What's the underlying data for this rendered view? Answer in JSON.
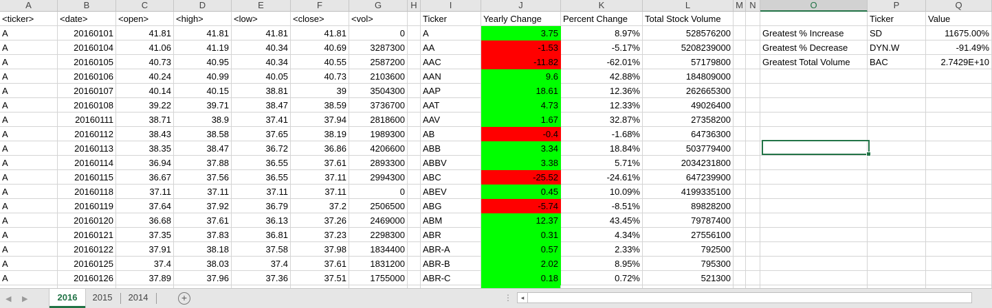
{
  "columns": [
    {
      "id": "A",
      "label": "A"
    },
    {
      "id": "B",
      "label": "B"
    },
    {
      "id": "C",
      "label": "C"
    },
    {
      "id": "D",
      "label": "D"
    },
    {
      "id": "E",
      "label": "E"
    },
    {
      "id": "F",
      "label": "F"
    },
    {
      "id": "G",
      "label": "G"
    },
    {
      "id": "H",
      "label": "H"
    },
    {
      "id": "I",
      "label": "I"
    },
    {
      "id": "J",
      "label": "J"
    },
    {
      "id": "K",
      "label": "K"
    },
    {
      "id": "L",
      "label": "L"
    },
    {
      "id": "M",
      "label": "M"
    },
    {
      "id": "N",
      "label": "N"
    },
    {
      "id": "O",
      "label": "O"
    },
    {
      "id": "P",
      "label": "P"
    },
    {
      "id": "Q",
      "label": "Q"
    }
  ],
  "selected_column": "O",
  "header_row": {
    "raw": [
      "<ticker>",
      "<date>",
      "<open>",
      "<high>",
      "<low>",
      "<close>",
      "<vol>"
    ],
    "summary": [
      "Ticker",
      "Yearly Change",
      "Percent Change",
      "Total Stock Volume"
    ],
    "bonus": [
      "Ticker",
      "Value"
    ]
  },
  "raw_rows": [
    [
      "A",
      "20160101",
      "41.81",
      "41.81",
      "41.81",
      "41.81",
      "0"
    ],
    [
      "A",
      "20160104",
      "41.06",
      "41.19",
      "40.34",
      "40.69",
      "3287300"
    ],
    [
      "A",
      "20160105",
      "40.73",
      "40.95",
      "40.34",
      "40.55",
      "2587200"
    ],
    [
      "A",
      "20160106",
      "40.24",
      "40.99",
      "40.05",
      "40.73",
      "2103600"
    ],
    [
      "A",
      "20160107",
      "40.14",
      "40.15",
      "38.81",
      "39",
      "3504300"
    ],
    [
      "A",
      "20160108",
      "39.22",
      "39.71",
      "38.47",
      "38.59",
      "3736700"
    ],
    [
      "A",
      "20160111",
      "38.71",
      "38.9",
      "37.41",
      "37.94",
      "2818600"
    ],
    [
      "A",
      "20160112",
      "38.43",
      "38.58",
      "37.65",
      "38.19",
      "1989300"
    ],
    [
      "A",
      "20160113",
      "38.35",
      "38.47",
      "36.72",
      "36.86",
      "4206600"
    ],
    [
      "A",
      "20160114",
      "36.94",
      "37.88",
      "36.55",
      "37.61",
      "2893300"
    ],
    [
      "A",
      "20160115",
      "36.67",
      "37.56",
      "36.55",
      "37.11",
      "2994300"
    ],
    [
      "A",
      "20160118",
      "37.11",
      "37.11",
      "37.11",
      "37.11",
      "0"
    ],
    [
      "A",
      "20160119",
      "37.64",
      "37.92",
      "36.79",
      "37.2",
      "2506500"
    ],
    [
      "A",
      "20160120",
      "36.68",
      "37.61",
      "36.13",
      "37.26",
      "2469000"
    ],
    [
      "A",
      "20160121",
      "37.35",
      "37.83",
      "36.81",
      "37.23",
      "2298300"
    ],
    [
      "A",
      "20160122",
      "37.91",
      "38.18",
      "37.58",
      "37.98",
      "1834400"
    ],
    [
      "A",
      "20160125",
      "37.4",
      "38.03",
      "37.4",
      "37.61",
      "1831200"
    ],
    [
      "A",
      "20160126",
      "37.89",
      "37.96",
      "37.36",
      "37.51",
      "1755000"
    ]
  ],
  "summary_rows": [
    {
      "ticker": "A",
      "change": "3.75",
      "pct": "8.97%",
      "volume": "528576200",
      "positive": true
    },
    {
      "ticker": "AA",
      "change": "-1.53",
      "pct": "-5.17%",
      "volume": "5208239000",
      "positive": false
    },
    {
      "ticker": "AAC",
      "change": "-11.82",
      "pct": "-62.01%",
      "volume": "57179800",
      "positive": false
    },
    {
      "ticker": "AAN",
      "change": "9.6",
      "pct": "42.88%",
      "volume": "184809000",
      "positive": true
    },
    {
      "ticker": "AAP",
      "change": "18.61",
      "pct": "12.36%",
      "volume": "262665300",
      "positive": true
    },
    {
      "ticker": "AAT",
      "change": "4.73",
      "pct": "12.33%",
      "volume": "49026400",
      "positive": true
    },
    {
      "ticker": "AAV",
      "change": "1.67",
      "pct": "32.87%",
      "volume": "27358200",
      "positive": true
    },
    {
      "ticker": "AB",
      "change": "-0.4",
      "pct": "-1.68%",
      "volume": "64736300",
      "positive": false
    },
    {
      "ticker": "ABB",
      "change": "3.34",
      "pct": "18.84%",
      "volume": "503779400",
      "positive": true
    },
    {
      "ticker": "ABBV",
      "change": "3.38",
      "pct": "5.71%",
      "volume": "2034231800",
      "positive": true
    },
    {
      "ticker": "ABC",
      "change": "-25.52",
      "pct": "-24.61%",
      "volume": "647239900",
      "positive": false
    },
    {
      "ticker": "ABEV",
      "change": "0.45",
      "pct": "10.09%",
      "volume": "4199335100",
      "positive": true
    },
    {
      "ticker": "ABG",
      "change": "-5.74",
      "pct": "-8.51%",
      "volume": "89828200",
      "positive": false
    },
    {
      "ticker": "ABM",
      "change": "12.37",
      "pct": "43.45%",
      "volume": "79787400",
      "positive": true
    },
    {
      "ticker": "ABR",
      "change": "0.31",
      "pct": "4.34%",
      "volume": "27556100",
      "positive": true
    },
    {
      "ticker": "ABR-A",
      "change": "0.57",
      "pct": "2.33%",
      "volume": "792500",
      "positive": true
    },
    {
      "ticker": "ABR-B",
      "change": "2.02",
      "pct": "8.95%",
      "volume": "795300",
      "positive": true
    },
    {
      "ticker": "ABR-C",
      "change": "0.18",
      "pct": "0.72%",
      "volume": "521300",
      "positive": true
    }
  ],
  "bonus_rows": [
    {
      "label": "Greatest % Increase",
      "ticker": "SD",
      "value": "11675.00%"
    },
    {
      "label": "Greatest % Decrease",
      "ticker": "DYN.W",
      "value": "-91.49%"
    },
    {
      "label": "Greatest Total Volume",
      "ticker": "BAC",
      "value": "2.7429E+10"
    }
  ],
  "sheet_tabs": [
    {
      "label": "2016",
      "active": true
    },
    {
      "label": "2015",
      "active": false
    },
    {
      "label": "2014",
      "active": false
    }
  ],
  "colors": {
    "positive": "#00ff00",
    "negative": "#ff0000",
    "accent": "#217346"
  },
  "icons": {
    "add_sheet": "plus-circle-icon",
    "scroll_prev": "triangle-left-icon",
    "scroll_next": "triangle-right-icon"
  }
}
